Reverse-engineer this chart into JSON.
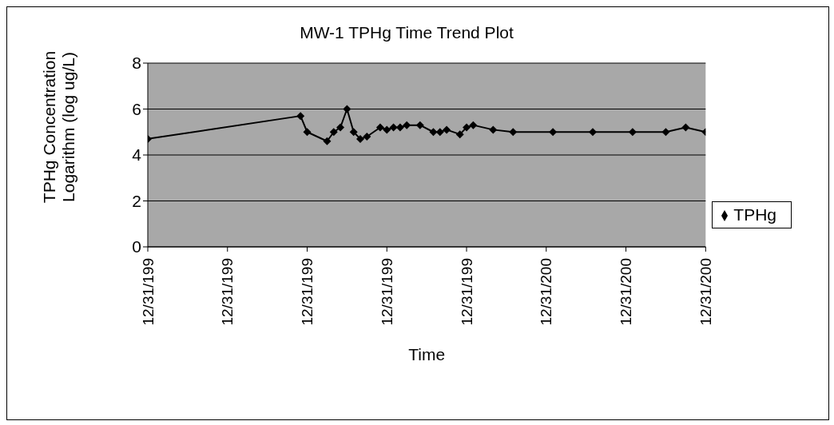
{
  "chart_data": {
    "type": "line",
    "title": "MW-1 TPHg Time Trend Plot",
    "xlabel": "Time",
    "ylabel": "TPHg Concentration Logarithm (log ug/L)",
    "categories": [
      "12/31/199",
      null,
      null,
      null,
      null,
      null,
      null,
      null,
      null,
      null,
      null,
      null,
      "12/31/199",
      null,
      null,
      null,
      null,
      null,
      null,
      null,
      null,
      null,
      null,
      null,
      "12/31/199",
      null,
      null,
      null,
      null,
      null,
      null,
      null,
      null,
      null,
      null,
      null,
      "12/31/199",
      null,
      null,
      null,
      null,
      null,
      null,
      null,
      null,
      null,
      null,
      null,
      "12/31/199",
      null,
      null,
      null,
      null,
      null,
      null,
      null,
      null,
      null,
      null,
      null,
      "12/31/200",
      null,
      null,
      null,
      null,
      null,
      null,
      null,
      null,
      null,
      null,
      null,
      "12/31/200",
      null,
      null,
      null,
      null,
      null,
      null,
      null,
      null,
      null,
      null,
      null,
      "12/31/200"
    ],
    "ylim": [
      0,
      8
    ],
    "yticks": [
      0,
      2,
      4,
      6,
      8
    ],
    "grid": "y",
    "legend": "right",
    "marker": "diamond",
    "line_style": "solid",
    "series": [
      {
        "name": "TPHg",
        "color": "#000000",
        "values": [
          4.7,
          null,
          null,
          null,
          null,
          null,
          null,
          null,
          null,
          null,
          null,
          null,
          null,
          null,
          null,
          null,
          null,
          null,
          null,
          null,
          null,
          null,
          null,
          5.7,
          5.0,
          null,
          null,
          4.6,
          5.0,
          5.2,
          6.0,
          5.0,
          4.7,
          4.8,
          null,
          5.2,
          5.1,
          5.2,
          5.2,
          5.3,
          null,
          5.3,
          null,
          5.0,
          5.0,
          5.1,
          null,
          4.9,
          5.2,
          5.3,
          null,
          null,
          5.1,
          null,
          null,
          5.0,
          null,
          null,
          null,
          null,
          null,
          5.0,
          null,
          null,
          null,
          null,
          null,
          5.0,
          null,
          null,
          null,
          null,
          null,
          5.0,
          null,
          null,
          null,
          null,
          5.0,
          null,
          null,
          5.2,
          null,
          null,
          5.0
        ]
      }
    ]
  }
}
